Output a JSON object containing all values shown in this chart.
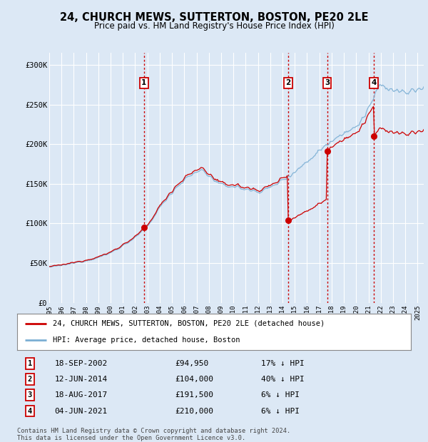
{
  "title": "24, CHURCH MEWS, SUTTERTON, BOSTON, PE20 2LE",
  "subtitle": "Price paid vs. HM Land Registry's House Price Index (HPI)",
  "background_color": "#dce8f5",
  "plot_bg_color": "#dce8f5",
  "ylabel": "",
  "yticks": [
    0,
    50000,
    100000,
    150000,
    200000,
    250000,
    300000
  ],
  "ytick_labels": [
    "£0",
    "£50K",
    "£100K",
    "£150K",
    "£200K",
    "£250K",
    "£300K"
  ],
  "ylim": [
    0,
    315000
  ],
  "hpi_color": "#7bafd4",
  "price_color": "#cc0000",
  "vline_color": "#cc0000",
  "transactions": [
    {
      "num": 1,
      "date_label": "18-SEP-2002",
      "price": 94950,
      "pct": "17%",
      "x_year": 2002.71
    },
    {
      "num": 2,
      "date_label": "12-JUN-2014",
      "price": 104000,
      "pct": "40%",
      "x_year": 2014.44
    },
    {
      "num": 3,
      "date_label": "18-AUG-2017",
      "price": 191500,
      "pct": "6%",
      "x_year": 2017.63
    },
    {
      "num": 4,
      "date_label": "04-JUN-2021",
      "price": 210000,
      "pct": "6%",
      "x_year": 2021.42
    }
  ],
  "legend_labels": [
    "24, CHURCH MEWS, SUTTERTON, BOSTON, PE20 2LE (detached house)",
    "HPI: Average price, detached house, Boston"
  ],
  "footer": "Contains HM Land Registry data © Crown copyright and database right 2024.\nThis data is licensed under the Open Government Licence v3.0.",
  "xmin": 1995.0,
  "xmax": 2025.5
}
